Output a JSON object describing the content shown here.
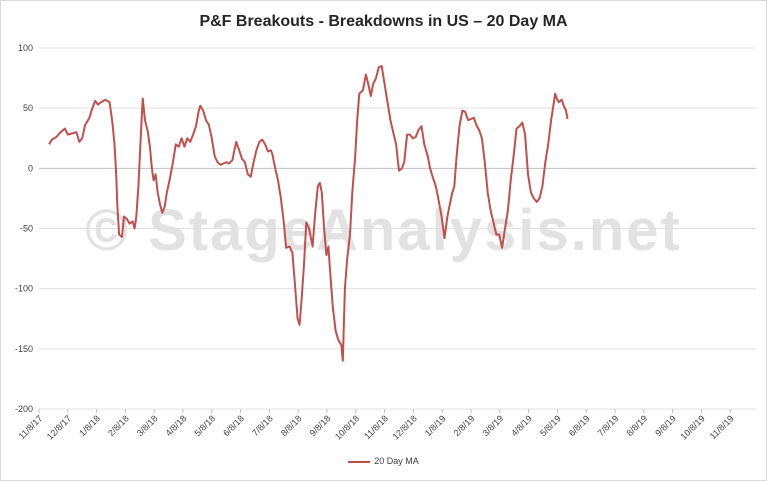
{
  "chart_data": {
    "type": "line",
    "title": "P&F Breakouts - Breakdowns in US – 20 Day MA",
    "watermark": "© StageAnalysis.net",
    "xlabel": "",
    "ylabel": "",
    "ylim": [
      -200,
      100
    ],
    "yticks": [
      100,
      50,
      0,
      -50,
      -100,
      -150,
      -200
    ],
    "grid": "horizontal",
    "legend_position": "bottom",
    "x_tick_labels": [
      "11/8/17",
      "12/8/17",
      "1/8/18",
      "2/8/18",
      "3/8/18",
      "4/8/18",
      "5/8/18",
      "6/8/18",
      "7/8/18",
      "8/8/18",
      "9/8/18",
      "10/8/18",
      "11/8/18",
      "12/8/18",
      "1/8/19",
      "2/8/19",
      "3/8/19",
      "4/8/19",
      "5/8/19",
      "6/8/19",
      "7/8/19",
      "8/8/19",
      "9/8/19",
      "10/8/19",
      "11/8/19"
    ],
    "series": [
      {
        "name": "20 Day MA",
        "color": "#c0504d",
        "points": [
          [
            0.35,
            20
          ],
          [
            0.45,
            24
          ],
          [
            0.6,
            26
          ],
          [
            0.75,
            30
          ],
          [
            0.9,
            33
          ],
          [
            1.0,
            28
          ],
          [
            1.15,
            29
          ],
          [
            1.3,
            30
          ],
          [
            1.4,
            22
          ],
          [
            1.5,
            25
          ],
          [
            1.6,
            36
          ],
          [
            1.75,
            42
          ],
          [
            1.85,
            50
          ],
          [
            1.95,
            56
          ],
          [
            2.05,
            53
          ],
          [
            2.15,
            55
          ],
          [
            2.3,
            57
          ],
          [
            2.45,
            55
          ],
          [
            2.55,
            38
          ],
          [
            2.62,
            20
          ],
          [
            2.68,
            -5
          ],
          [
            2.72,
            -30
          ],
          [
            2.78,
            -55
          ],
          [
            2.88,
            -57
          ],
          [
            2.95,
            -40
          ],
          [
            3.05,
            -42
          ],
          [
            3.15,
            -46
          ],
          [
            3.25,
            -44
          ],
          [
            3.32,
            -50
          ],
          [
            3.38,
            -40
          ],
          [
            3.45,
            -15
          ],
          [
            3.52,
            20
          ],
          [
            3.6,
            58
          ],
          [
            3.68,
            40
          ],
          [
            3.78,
            30
          ],
          [
            3.85,
            18
          ],
          [
            3.92,
            0
          ],
          [
            3.98,
            -10
          ],
          [
            4.05,
            -5
          ],
          [
            4.12,
            -20
          ],
          [
            4.2,
            -30
          ],
          [
            4.28,
            -37
          ],
          [
            4.36,
            -32
          ],
          [
            4.44,
            -20
          ],
          [
            4.55,
            -8
          ],
          [
            4.65,
            5
          ],
          [
            4.75,
            20
          ],
          [
            4.85,
            18
          ],
          [
            4.95,
            25
          ],
          [
            5.05,
            18
          ],
          [
            5.15,
            25
          ],
          [
            5.25,
            22
          ],
          [
            5.35,
            28
          ],
          [
            5.45,
            35
          ],
          [
            5.55,
            48
          ],
          [
            5.6,
            52
          ],
          [
            5.7,
            48
          ],
          [
            5.8,
            40
          ],
          [
            5.9,
            36
          ],
          [
            6.0,
            25
          ],
          [
            6.1,
            10
          ],
          [
            6.2,
            5
          ],
          [
            6.3,
            3
          ],
          [
            6.4,
            4
          ],
          [
            6.5,
            5
          ],
          [
            6.6,
            4
          ],
          [
            6.72,
            7
          ],
          [
            6.78,
            15
          ],
          [
            6.85,
            22
          ],
          [
            6.95,
            15
          ],
          [
            7.05,
            8
          ],
          [
            7.15,
            5
          ],
          [
            7.25,
            -5
          ],
          [
            7.35,
            -7
          ],
          [
            7.45,
            5
          ],
          [
            7.55,
            15
          ],
          [
            7.65,
            22
          ],
          [
            7.75,
            24
          ],
          [
            7.85,
            20
          ],
          [
            7.95,
            14
          ],
          [
            8.05,
            15
          ],
          [
            8.1,
            12
          ],
          [
            8.2,
            0
          ],
          [
            8.3,
            -10
          ],
          [
            8.4,
            -25
          ],
          [
            8.5,
            -45
          ],
          [
            8.58,
            -66
          ],
          [
            8.7,
            -65
          ],
          [
            8.8,
            -70
          ],
          [
            8.9,
            -100
          ],
          [
            8.98,
            -125
          ],
          [
            9.05,
            -130
          ],
          [
            9.12,
            -108
          ],
          [
            9.2,
            -80
          ],
          [
            9.28,
            -45
          ],
          [
            9.38,
            -50
          ],
          [
            9.5,
            -65
          ],
          [
            9.58,
            -40
          ],
          [
            9.68,
            -15
          ],
          [
            9.75,
            -12
          ],
          [
            9.82,
            -20
          ],
          [
            9.9,
            -50
          ],
          [
            9.98,
            -72
          ],
          [
            10.05,
            -65
          ],
          [
            10.12,
            -90
          ],
          [
            10.2,
            -115
          ],
          [
            10.3,
            -135
          ],
          [
            10.4,
            -143
          ],
          [
            10.5,
            -147
          ],
          [
            10.55,
            -160
          ],
          [
            10.62,
            -100
          ],
          [
            10.7,
            -75
          ],
          [
            10.8,
            -55
          ],
          [
            10.88,
            -20
          ],
          [
            10.98,
            10
          ],
          [
            11.05,
            40
          ],
          [
            11.12,
            62
          ],
          [
            11.25,
            65
          ],
          [
            11.35,
            78
          ],
          [
            11.45,
            68
          ],
          [
            11.52,
            60
          ],
          [
            11.6,
            70
          ],
          [
            11.7,
            75
          ],
          [
            11.8,
            84
          ],
          [
            11.9,
            85
          ],
          [
            12.0,
            70
          ],
          [
            12.1,
            55
          ],
          [
            12.2,
            40
          ],
          [
            12.3,
            30
          ],
          [
            12.4,
            20
          ],
          [
            12.5,
            -2
          ],
          [
            12.6,
            0
          ],
          [
            12.68,
            5
          ],
          [
            12.78,
            28
          ],
          [
            12.88,
            28
          ],
          [
            12.98,
            25
          ],
          [
            13.08,
            26
          ],
          [
            13.18,
            32
          ],
          [
            13.28,
            35
          ],
          [
            13.38,
            20
          ],
          [
            13.5,
            10
          ],
          [
            13.58,
            0
          ],
          [
            13.68,
            -8
          ],
          [
            13.78,
            -15
          ],
          [
            13.88,
            -27
          ],
          [
            13.98,
            -40
          ],
          [
            14.08,
            -58
          ],
          [
            14.18,
            -40
          ],
          [
            14.28,
            -28
          ],
          [
            14.35,
            -20
          ],
          [
            14.42,
            -15
          ],
          [
            14.5,
            10
          ],
          [
            14.6,
            35
          ],
          [
            14.7,
            48
          ],
          [
            14.8,
            47
          ],
          [
            14.9,
            40
          ],
          [
            15.0,
            41
          ],
          [
            15.1,
            42
          ],
          [
            15.2,
            35
          ],
          [
            15.28,
            32
          ],
          [
            15.38,
            25
          ],
          [
            15.48,
            5
          ],
          [
            15.58,
            -20
          ],
          [
            15.68,
            -35
          ],
          [
            15.78,
            -45
          ],
          [
            15.88,
            -55
          ],
          [
            15.98,
            -55
          ],
          [
            16.08,
            -66
          ],
          [
            16.18,
            -50
          ],
          [
            16.28,
            -35
          ],
          [
            16.38,
            -10
          ],
          [
            16.48,
            10
          ],
          [
            16.58,
            33
          ],
          [
            16.68,
            35
          ],
          [
            16.78,
            38
          ],
          [
            16.88,
            28
          ],
          [
            16.98,
            -5
          ],
          [
            17.08,
            -20
          ],
          [
            17.18,
            -25
          ],
          [
            17.28,
            -28
          ],
          [
            17.38,
            -25
          ],
          [
            17.48,
            -15
          ],
          [
            17.58,
            5
          ],
          [
            17.68,
            20
          ],
          [
            17.78,
            40
          ],
          [
            17.88,
            55
          ],
          [
            17.92,
            62
          ],
          [
            17.98,
            58
          ],
          [
            18.05,
            55
          ],
          [
            18.15,
            57
          ],
          [
            18.22,
            52
          ],
          [
            18.3,
            48
          ],
          [
            18.35,
            41
          ]
        ]
      }
    ]
  }
}
